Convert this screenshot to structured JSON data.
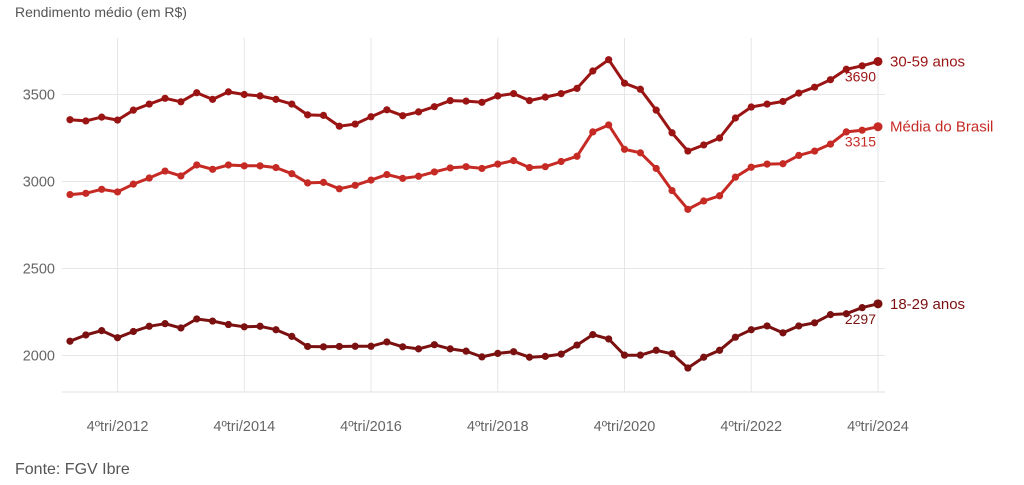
{
  "chart_data": {
    "type": "line",
    "ylabel": "Rendimento médio (em R$)",
    "source": "Fonte: FGV Ibre",
    "ylim": [
      1900,
      3750
    ],
    "yticks": [
      2000,
      2500,
      3000,
      3500
    ],
    "xticks": [
      "4ºtri/2012",
      "4ºtri/2014",
      "4ºtri/2016",
      "4ºtri/2018",
      "4ºtri/2020",
      "4ºtri/2022",
      "4ºtri/2024"
    ],
    "xtick_index": [
      3,
      11,
      19,
      27,
      35,
      43,
      51
    ],
    "grid": true,
    "legend": "end-of-line labels",
    "series": [
      {
        "name": "30-59 anos",
        "color": "#9a1414",
        "last_label": "3690",
        "values": [
          3355,
          3348,
          3370,
          3353,
          3410,
          3445,
          3478,
          3458,
          3510,
          3472,
          3515,
          3500,
          3492,
          3472,
          3445,
          3383,
          3380,
          3318,
          3330,
          3372,
          3412,
          3378,
          3400,
          3430,
          3465,
          3462,
          3455,
          3492,
          3505,
          3465,
          3485,
          3505,
          3535,
          3635,
          3700,
          3565,
          3530,
          3410,
          3280,
          3175,
          3210,
          3250,
          3365,
          3428,
          3445,
          3460,
          3508,
          3542,
          3585,
          3645,
          3665,
          3690
        ]
      },
      {
        "name": "Média do Brasil",
        "color": "#c62a24",
        "last_label": "3315",
        "values": [
          2925,
          2932,
          2955,
          2940,
          2985,
          3020,
          3060,
          3032,
          3095,
          3070,
          3095,
          3090,
          3090,
          3080,
          3045,
          2992,
          2995,
          2958,
          2978,
          3008,
          3040,
          3018,
          3030,
          3055,
          3078,
          3085,
          3075,
          3100,
          3120,
          3080,
          3085,
          3115,
          3145,
          3285,
          3325,
          3185,
          3165,
          3075,
          2948,
          2840,
          2888,
          2918,
          3025,
          3082,
          3100,
          3102,
          3150,
          3175,
          3215,
          3285,
          3295,
          3315
        ]
      },
      {
        "name": "18-29 anos",
        "color": "#7a1010",
        "last_label": "2297",
        "values": [
          2082,
          2118,
          2143,
          2102,
          2138,
          2168,
          2183,
          2158,
          2210,
          2198,
          2178,
          2165,
          2168,
          2148,
          2110,
          2052,
          2050,
          2052,
          2053,
          2053,
          2078,
          2050,
          2038,
          2062,
          2038,
          2025,
          1992,
          2012,
          2022,
          1990,
          1995,
          2008,
          2060,
          2120,
          2095,
          2002,
          2002,
          2030,
          2010,
          1928,
          1990,
          2030,
          2105,
          2148,
          2170,
          2130,
          2170,
          2188,
          2235,
          2240,
          2275,
          2297
        ]
      }
    ]
  }
}
